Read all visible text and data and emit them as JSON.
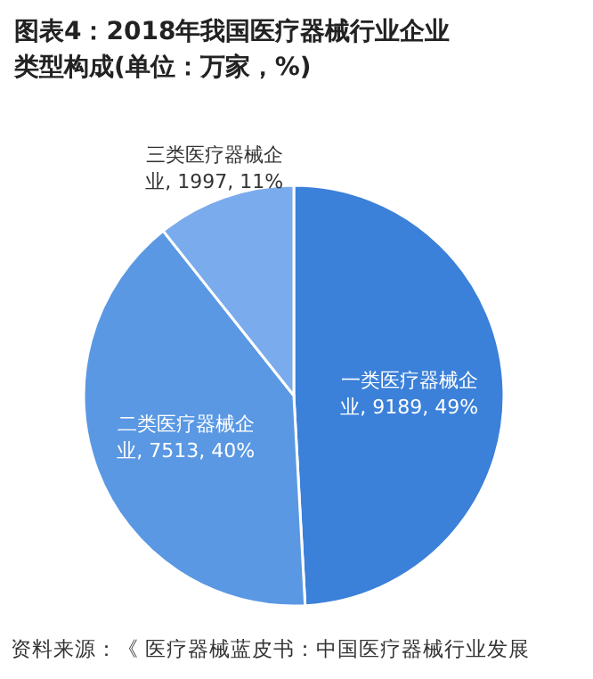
{
  "chart_data": {
    "type": "pie",
    "title": "图表4：2018年我国医疗器械行业企业类型构成(单位：万家，%)",
    "categories": [
      "一类医疗器械企业",
      "二类医疗器械企业",
      "三类医疗器械企业"
    ],
    "values": [
      9189,
      7513,
      1997
    ],
    "value_labels": [
      "9189, 49%",
      "7513, 40%",
      "1997, 11%"
    ],
    "colors": [
      "#3b80d9",
      "#5a98e3",
      "#7aabec"
    ],
    "annotations": [
      "资料来源：《 医疗器械蓝皮书：中国医疗器械行业发展"
    ]
  }
}
